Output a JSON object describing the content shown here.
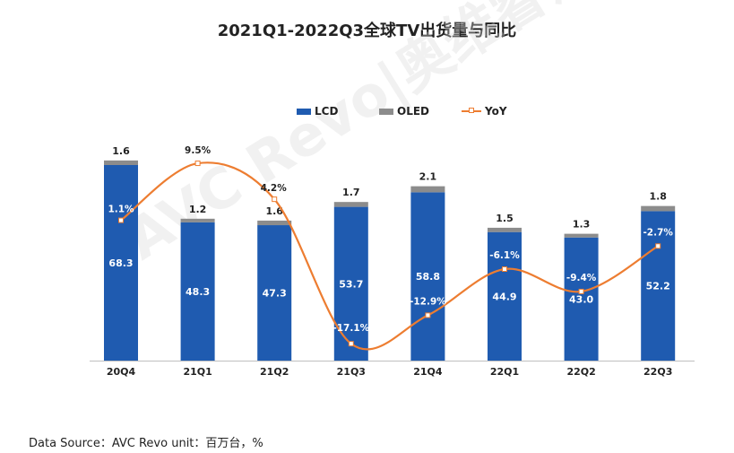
{
  "title": "2021Q1-2022Q3全球TV出货量与同比",
  "watermark": "AVC Revo|奥维睿沃",
  "source": "Data Source：AVC Revo  unit：百万台，%",
  "colors": {
    "lcd": "#1F5BB0",
    "oled": "#8C8C8C",
    "yoy": "#ED7D31"
  },
  "chart_data": {
    "type": "bar",
    "stacked": true,
    "categories": [
      "20Q4",
      "21Q1",
      "21Q2",
      "21Q3",
      "21Q4",
      "22Q1",
      "22Q2",
      "22Q3"
    ],
    "series": [
      {
        "name": "LCD",
        "type": "bar",
        "values": [
          68.3,
          48.3,
          47.3,
          53.7,
          58.8,
          44.9,
          43.0,
          52.2
        ],
        "labels": [
          "68.3",
          "48.3",
          "47.3",
          "53.7",
          "58.8",
          "44.9",
          "43.0",
          "52.2"
        ]
      },
      {
        "name": "OLED",
        "type": "bar",
        "values": [
          1.6,
          1.2,
          1.6,
          1.7,
          2.1,
          1.5,
          1.3,
          1.8
        ],
        "labels": [
          "1.6",
          "1.2",
          "1.6",
          "1.7",
          "2.1",
          "1.5",
          "1.3",
          "1.8"
        ]
      },
      {
        "name": "YoY",
        "type": "line",
        "values": [
          1.1,
          9.5,
          4.2,
          -17.1,
          -12.9,
          -6.1,
          -9.4,
          -2.7
        ],
        "labels": [
          "1.1%",
          "9.5%",
          "4.2%",
          "-17.1%",
          "-12.9%",
          "-6.1%",
          "-9.4%",
          "-2.7%"
        ]
      }
    ],
    "legend": "top-center",
    "grid": false
  }
}
